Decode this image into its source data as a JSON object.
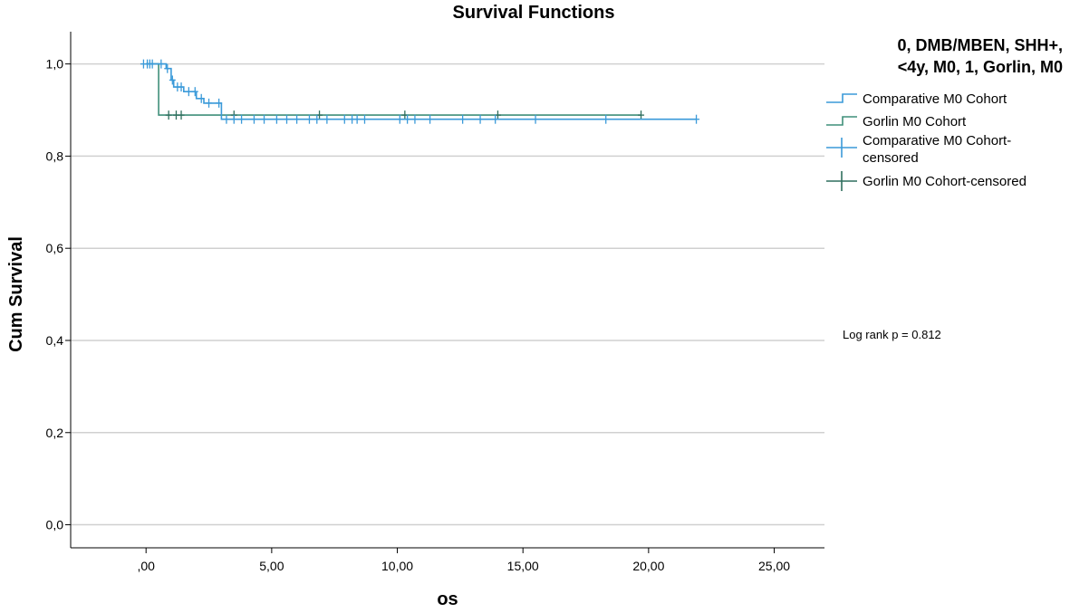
{
  "chart_data": {
    "type": "line",
    "subtype": "kaplan-meier",
    "title": "Survival Functions",
    "xlabel": "os",
    "ylabel": "Cum Survival",
    "xlim": [
      -3,
      27
    ],
    "ylim": [
      -0.05,
      1.07
    ],
    "x_ticks": [
      0,
      5,
      10,
      15,
      20,
      25
    ],
    "x_tick_labels": [
      ",00",
      "5,00",
      "10,00",
      "15,00",
      "20,00",
      "25,00"
    ],
    "y_ticks": [
      0,
      0.2,
      0.4,
      0.6,
      0.8,
      1.0
    ],
    "y_tick_labels": [
      "0,0",
      "0,2",
      "0,4",
      "0,6",
      "0,8",
      "1,0"
    ],
    "grid": "horizontal",
    "legend": {
      "placement": "right",
      "title_lines": [
        "0, DMB/MBEN, SHH+,",
        "<4y, M0, 1, Gorlin, M0"
      ],
      "entries": [
        {
          "label_lines": [
            "Comparative M0 Cohort"
          ],
          "kind": "step",
          "color": "#3a9ad9"
        },
        {
          "label_lines": [
            "Gorlin M0 Cohort"
          ],
          "kind": "step",
          "color": "#3f8f7a"
        },
        {
          "label_lines": [
            "Comparative M0 Cohort-",
            "censored"
          ],
          "kind": "censor",
          "color": "#3a9ad9"
        },
        {
          "label_lines": [
            "Gorlin M0 Cohort-censored"
          ],
          "kind": "censor",
          "color": "#2f6f5e"
        }
      ]
    },
    "annotation": "Log rank p = 0.812",
    "series": [
      {
        "name": "Comparative M0 Cohort",
        "color": "#3a9ad9",
        "steps": [
          [
            0,
            1.0
          ],
          [
            0.8,
            0.99
          ],
          [
            1.0,
            0.965
          ],
          [
            1.1,
            0.95
          ],
          [
            1.5,
            0.94
          ],
          [
            2.0,
            0.925
          ],
          [
            2.3,
            0.915
          ],
          [
            3.0,
            0.88
          ],
          [
            21.9,
            0.88
          ]
        ],
        "censored": [
          [
            -0.1,
            1.0
          ],
          [
            0.05,
            1.0
          ],
          [
            0.15,
            1.0
          ],
          [
            0.25,
            1.0
          ],
          [
            0.6,
            1.0
          ],
          [
            0.85,
            0.99
          ],
          [
            1.05,
            0.965
          ],
          [
            1.25,
            0.95
          ],
          [
            1.4,
            0.95
          ],
          [
            1.7,
            0.94
          ],
          [
            1.95,
            0.94
          ],
          [
            2.2,
            0.925
          ],
          [
            2.5,
            0.915
          ],
          [
            2.9,
            0.915
          ],
          [
            3.2,
            0.88
          ],
          [
            3.5,
            0.88
          ],
          [
            3.8,
            0.88
          ],
          [
            4.3,
            0.88
          ],
          [
            4.7,
            0.88
          ],
          [
            5.2,
            0.88
          ],
          [
            5.6,
            0.88
          ],
          [
            6.0,
            0.88
          ],
          [
            6.5,
            0.88
          ],
          [
            6.8,
            0.88
          ],
          [
            7.2,
            0.88
          ],
          [
            7.9,
            0.88
          ],
          [
            8.2,
            0.88
          ],
          [
            8.4,
            0.88
          ],
          [
            8.7,
            0.88
          ],
          [
            10.1,
            0.88
          ],
          [
            10.4,
            0.88
          ],
          [
            10.7,
            0.88
          ],
          [
            11.3,
            0.88
          ],
          [
            12.6,
            0.88
          ],
          [
            13.3,
            0.88
          ],
          [
            13.9,
            0.88
          ],
          [
            15.5,
            0.88
          ],
          [
            18.3,
            0.88
          ],
          [
            21.9,
            0.88
          ]
        ]
      },
      {
        "name": "Gorlin M0 Cohort",
        "color": "#3f8f7a",
        "steps": [
          [
            0,
            1.0
          ],
          [
            0.5,
            0.889
          ],
          [
            19.7,
            0.889
          ]
        ],
        "censored": [
          [
            0.9,
            0.889
          ],
          [
            1.2,
            0.889
          ],
          [
            1.4,
            0.889
          ],
          [
            3.5,
            0.889
          ],
          [
            6.9,
            0.889
          ],
          [
            10.3,
            0.889
          ],
          [
            14.0,
            0.889
          ],
          [
            19.7,
            0.889
          ]
        ]
      }
    ]
  }
}
